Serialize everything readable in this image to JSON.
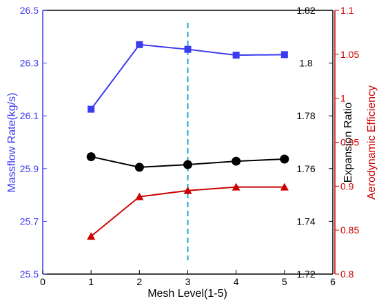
{
  "chart_data": {
    "type": "line",
    "xlabel": "Mesh Level(1-5)",
    "xlim": [
      0,
      6
    ],
    "x_ticks": [
      "0",
      "1",
      "2",
      "3",
      "4",
      "5",
      "6"
    ],
    "x": [
      1,
      2,
      3,
      4,
      5
    ],
    "grid": false,
    "legend": "none",
    "marker_line": {
      "x": 3,
      "color": "#19a3d6",
      "style": "dashed"
    },
    "axes": [
      {
        "id": "left",
        "label": "Massflow Rate(kg/s)",
        "color": "#3a3af0",
        "ylim": [
          25.5,
          26.5
        ],
        "ticks": [
          "25.5",
          "25.7",
          "25.9",
          "26.1",
          "26.3",
          "26.5"
        ]
      },
      {
        "id": "right1",
        "label": "Expansion Ratio",
        "color": "#000000",
        "ylim": [
          1.72,
          1.82
        ],
        "ticks": [
          "1.72",
          "1.74",
          "1.76",
          "1.78",
          "1.8",
          "1.82"
        ]
      },
      {
        "id": "right2",
        "label": "Aerodynamic Efficiency",
        "color": "#cc0000",
        "ylim": [
          0.8,
          1.1
        ],
        "ticks": [
          "0.8",
          "0.85",
          "0.9",
          "0.95",
          "1",
          "1.05",
          "1.1"
        ]
      }
    ],
    "series": [
      {
        "axis": "left",
        "marker": "square",
        "color": "#3a3af0",
        "values": [
          26.125,
          26.37,
          26.352,
          26.33,
          26.332
        ]
      },
      {
        "axis": "right1",
        "marker": "circle",
        "color": "#000000",
        "values": [
          1.7645,
          1.7605,
          1.7615,
          1.7628,
          1.7636
        ]
      },
      {
        "axis": "right2",
        "marker": "triangle",
        "color": "#cc0000",
        "values": [
          0.843,
          0.888,
          0.895,
          0.899,
          0.899
        ]
      }
    ]
  }
}
